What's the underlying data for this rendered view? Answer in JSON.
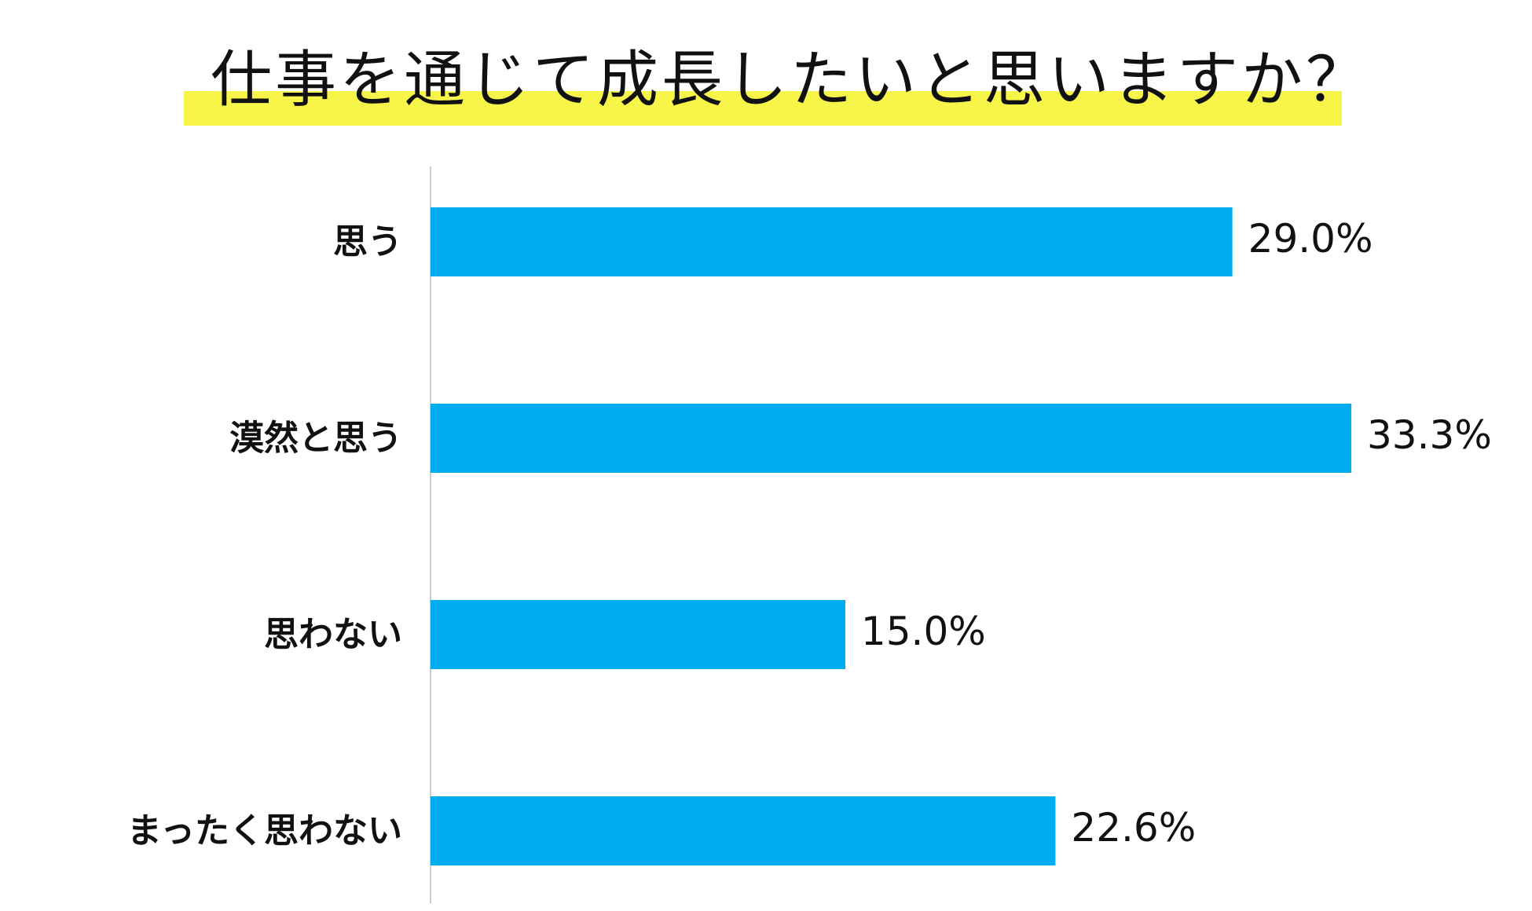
{
  "chart_data": {
    "type": "bar",
    "orientation": "horizontal",
    "title": "仕事を通じて成長したいと思いますか？",
    "categories": [
      "思う",
      "漠然と思う",
      "思わない",
      "まったく思わない"
    ],
    "values": [
      29.0,
      33.3,
      15.0,
      22.6
    ],
    "value_labels": [
      "29.0%",
      "33.3%",
      "15.0%",
      "22.6%"
    ],
    "unit": "%",
    "xlim": [
      0,
      33.3
    ],
    "grid": false,
    "legend": "none",
    "bar_color": "#00adef",
    "title_highlight_color": "#f7f54a",
    "axis_color": "#cccccc"
  }
}
